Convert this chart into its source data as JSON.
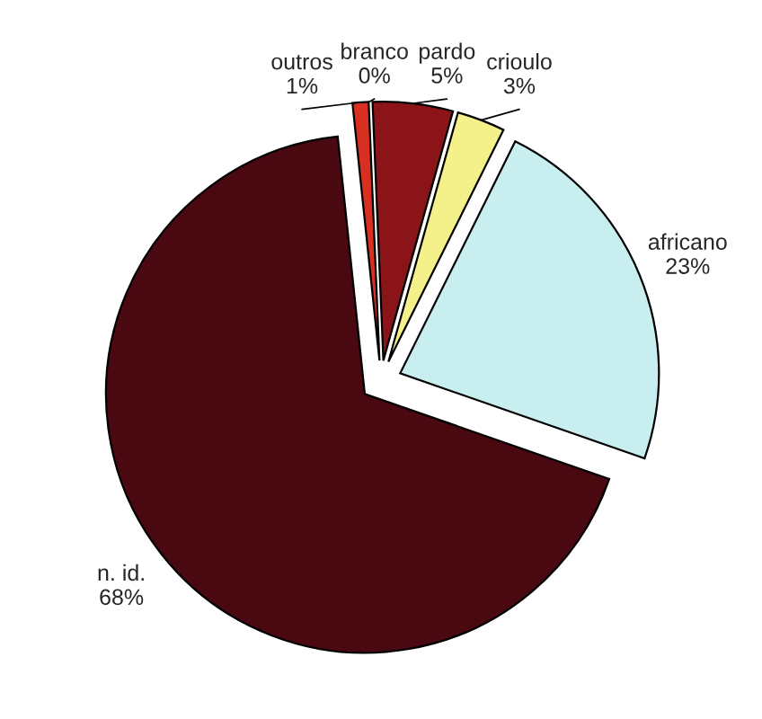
{
  "chart_data": {
    "type": "pie",
    "categories": [
      "outros",
      "branco",
      "pardo",
      "crioulo",
      "africano",
      "n. id."
    ],
    "values": [
      1,
      0,
      5,
      3,
      23,
      68
    ],
    "value_labels": [
      "1%",
      "0%",
      "5%",
      "3%",
      "23%",
      "68%"
    ],
    "colors": [
      "#d83020",
      "#ffffff",
      "#8a1418",
      "#f4f08a",
      "#c8eef0",
      "#4a0810"
    ]
  }
}
